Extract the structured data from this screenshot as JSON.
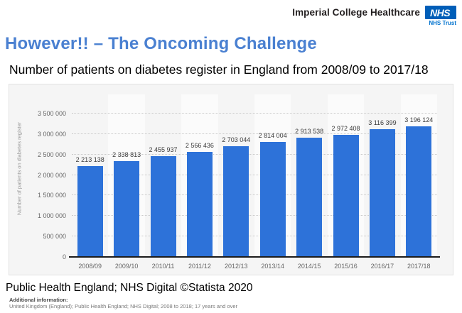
{
  "header": {
    "org_name": "Imperial College Healthcare",
    "nhs_logo_text": "NHS",
    "nhs_trust_label": "NHS Trust",
    "nhs_blue": "#005EB8"
  },
  "slide": {
    "title": "However!! – The Oncoming Challenge",
    "title_color": "#4a80d1",
    "subtitle": "Number of patients on diabetes register in England from 2008/09 to 2017/18"
  },
  "chart_data": {
    "type": "bar",
    "title": "Number of patients on diabetes register in England from 2008/09 to 2017/18",
    "categories": [
      "2008/09",
      "2009/10",
      "2010/11",
      "2011/12",
      "2012/13",
      "2013/14",
      "2014/15",
      "2015/16",
      "2016/17",
      "2017/18"
    ],
    "values": [
      2213138,
      2338813,
      2455937,
      2566436,
      2703044,
      2814004,
      2913538,
      2972408,
      3116399,
      3196124
    ],
    "value_labels": [
      "2 213 138",
      "2 338 813",
      "2 455 937",
      "2 566 436",
      "2 703 044",
      "2 814 004",
      "2 913 538",
      "2 972 408",
      "3 116 399",
      "3 196 124"
    ],
    "ylabel": "Number of patients on diabetes register",
    "xlabel": "",
    "ylim": [
      0,
      3500000
    ],
    "ytick_step": 500000,
    "ytick_labels": [
      "3 500 000",
      "3 000 000",
      "2 500 000",
      "2 000 000",
      "1 500 000",
      "1 000 000",
      "500 000",
      "0"
    ],
    "bar_color": "#2d72d9",
    "grid": "horizontal-dotted",
    "legend": "none"
  },
  "footer": {
    "source": "Public Health England; NHS Digital ©Statista 2020",
    "additional_info_label": "Additional information:",
    "additional_info": "United Kingdom (England); Public Health England; NHS Digital; 2008 to 2018; 17 years and over"
  }
}
